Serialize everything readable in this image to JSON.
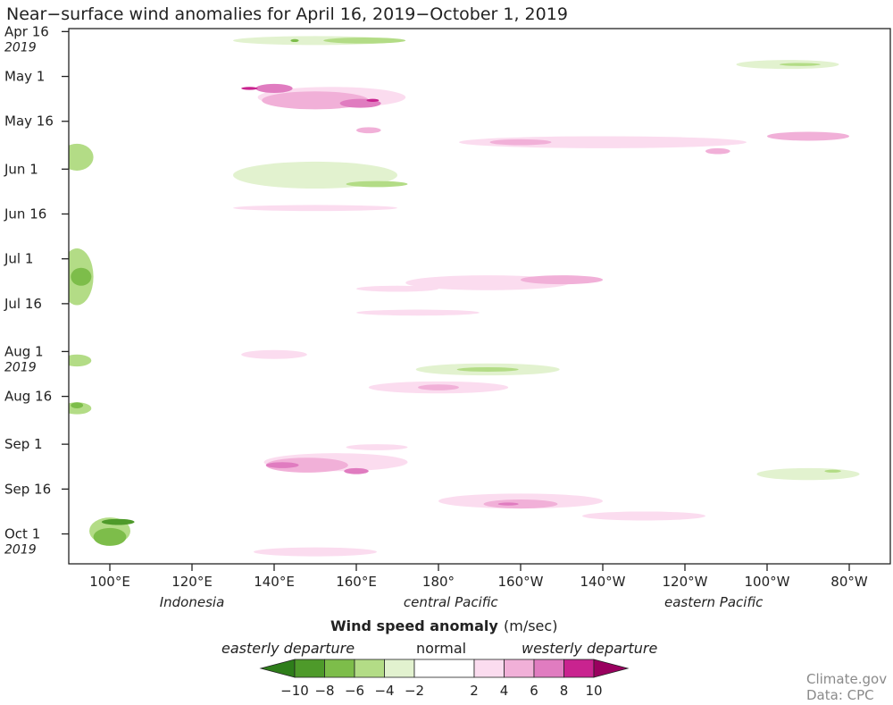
{
  "chart_data": {
    "type": "heatmap",
    "title": "Near−surface wind anomalies for April 16, 2019−October 1, 2019",
    "y_labels": [
      {
        "label": "Apr 16",
        "year": "2019",
        "day": 0
      },
      {
        "label": "May 1",
        "year": "",
        "day": 15
      },
      {
        "label": "May 16",
        "year": "",
        "day": 30
      },
      {
        "label": "Jun 1",
        "year": "",
        "day": 46
      },
      {
        "label": "Jun 16",
        "year": "",
        "day": 61
      },
      {
        "label": "Jul 1",
        "year": "",
        "day": 76
      },
      {
        "label": "Jul 16",
        "year": "",
        "day": 91
      },
      {
        "label": "Aug 1",
        "year": "2019",
        "day": 107
      },
      {
        "label": "Aug 16",
        "year": "",
        "day": 122
      },
      {
        "label": "Sep 1",
        "year": "",
        "day": 138
      },
      {
        "label": "Sep 16",
        "year": "",
        "day": 153
      },
      {
        "label": "Oct 1",
        "year": "2019",
        "day": 168
      }
    ],
    "y_range_days": [
      -1,
      178
    ],
    "x_labels": [
      {
        "label": "100°E",
        "lon": 100
      },
      {
        "label": "120°E",
        "lon": 120
      },
      {
        "label": "140°E",
        "lon": 140
      },
      {
        "label": "160°E",
        "lon": 160
      },
      {
        "label": "180°",
        "lon": 180
      },
      {
        "label": "160°W",
        "lon": 200
      },
      {
        "label": "140°W",
        "lon": 220
      },
      {
        "label": "120°W",
        "lon": 240
      },
      {
        "label": "100°W",
        "lon": 260
      },
      {
        "label": "80°W",
        "lon": 280
      }
    ],
    "x_range_lon": [
      90,
      290
    ],
    "regions": [
      {
        "label": "Indonesia",
        "lon": 120
      },
      {
        "label": "central Pacific",
        "lon": 183
      },
      {
        "label": "eastern Pacific",
        "lon": 247
      }
    ],
    "colorbar": {
      "title": "Wind speed anomaly",
      "unit": "(m/sec)",
      "left_label": "easterly departure",
      "center_label": "normal",
      "right_label": "westerly departure",
      "levels": [
        -10,
        -8,
        -6,
        -4,
        -2,
        2,
        4,
        6,
        8,
        10
      ],
      "tick_labels": [
        "−10",
        "−8",
        "−6",
        "−4",
        "−2",
        "2",
        "4",
        "6",
        "8",
        "10"
      ],
      "colors": [
        "#2e7d1a",
        "#4e9a2a",
        "#7dbd4a",
        "#b3dc86",
        "#e2f2cf",
        "#ffffff",
        "#fbdcef",
        "#f1b0d8",
        "#e07cc0",
        "#c9238f",
        "#99005f"
      ]
    },
    "anomalies": [
      {
        "lon": 150,
        "day": 3,
        "w": 40,
        "h": 3,
        "v": -3
      },
      {
        "lon": 162,
        "day": 3,
        "w": 20,
        "h": 2,
        "v": -5
      },
      {
        "lon": 145,
        "day": 3,
        "w": 2,
        "h": 1,
        "v": -7
      },
      {
        "lon": 265,
        "day": 11,
        "w": 25,
        "h": 3,
        "v": -3
      },
      {
        "lon": 268,
        "day": 11,
        "w": 10,
        "h": 1,
        "v": -5
      },
      {
        "lon": 154,
        "day": 22,
        "w": 36,
        "h": 7,
        "v": 3
      },
      {
        "lon": 150,
        "day": 23,
        "w": 26,
        "h": 6,
        "v": 5
      },
      {
        "lon": 140,
        "day": 19,
        "w": 9,
        "h": 3,
        "v": 7
      },
      {
        "lon": 161,
        "day": 24,
        "w": 10,
        "h": 3,
        "v": 7
      },
      {
        "lon": 134,
        "day": 19,
        "w": 4,
        "h": 1,
        "v": 9
      },
      {
        "lon": 164,
        "day": 23,
        "w": 3,
        "h": 1,
        "v": 9
      },
      {
        "lon": 163,
        "day": 33,
        "w": 6,
        "h": 2,
        "v": 5
      },
      {
        "lon": 220,
        "day": 37,
        "w": 70,
        "h": 4,
        "v": 2.5
      },
      {
        "lon": 200,
        "day": 37,
        "w": 15,
        "h": 2,
        "v": 4.5
      },
      {
        "lon": 270,
        "day": 35,
        "w": 20,
        "h": 3,
        "v": 4.5
      },
      {
        "lon": 248,
        "day": 40,
        "w": 6,
        "h": 2,
        "v": 5
      },
      {
        "lon": 92,
        "day": 42,
        "w": 8,
        "h": 9,
        "v": -4
      },
      {
        "lon": 150,
        "day": 48,
        "w": 40,
        "h": 9,
        "v": -3
      },
      {
        "lon": 165,
        "day": 51,
        "w": 15,
        "h": 2,
        "v": -5
      },
      {
        "lon": 150,
        "day": 59,
        "w": 40,
        "h": 2,
        "v": 2.5
      },
      {
        "lon": 92,
        "day": 82,
        "w": 8,
        "h": 19,
        "v": -4
      },
      {
        "lon": 93,
        "day": 82,
        "w": 5,
        "h": 6,
        "v": -6
      },
      {
        "lon": 192,
        "day": 84,
        "w": 40,
        "h": 5,
        "v": 3
      },
      {
        "lon": 210,
        "day": 83,
        "w": 20,
        "h": 3,
        "v": 4.5
      },
      {
        "lon": 170,
        "day": 86,
        "w": 20,
        "h": 2,
        "v": 3
      },
      {
        "lon": 175,
        "day": 94,
        "w": 30,
        "h": 2,
        "v": 3
      },
      {
        "lon": 92,
        "day": 110,
        "w": 7,
        "h": 4,
        "v": -4
      },
      {
        "lon": 192,
        "day": 113,
        "w": 35,
        "h": 4,
        "v": -3
      },
      {
        "lon": 192,
        "day": 113,
        "w": 15,
        "h": 1.5,
        "v": -5
      },
      {
        "lon": 140,
        "day": 108,
        "w": 16,
        "h": 3,
        "v": 2.5
      },
      {
        "lon": 180,
        "day": 119,
        "w": 34,
        "h": 4,
        "v": 3
      },
      {
        "lon": 180,
        "day": 119,
        "w": 10,
        "h": 2,
        "v": 4.5
      },
      {
        "lon": 92,
        "day": 126,
        "w": 7,
        "h": 4,
        "v": -4
      },
      {
        "lon": 92,
        "day": 125,
        "w": 3,
        "h": 2,
        "v": -6
      },
      {
        "lon": 155,
        "day": 144,
        "w": 35,
        "h": 6,
        "v": 3
      },
      {
        "lon": 148,
        "day": 145,
        "w": 20,
        "h": 5,
        "v": 5
      },
      {
        "lon": 142,
        "day": 145,
        "w": 8,
        "h": 2,
        "v": 7
      },
      {
        "lon": 160,
        "day": 147,
        "w": 6,
        "h": 2,
        "v": 7
      },
      {
        "lon": 165,
        "day": 139,
        "w": 15,
        "h": 2,
        "v": 3
      },
      {
        "lon": 200,
        "day": 157,
        "w": 40,
        "h": 5,
        "v": 3
      },
      {
        "lon": 200,
        "day": 158,
        "w": 18,
        "h": 3,
        "v": 5
      },
      {
        "lon": 197,
        "day": 158,
        "w": 5,
        "h": 1,
        "v": 7
      },
      {
        "lon": 270,
        "day": 148,
        "w": 25,
        "h": 4,
        "v": -3
      },
      {
        "lon": 276,
        "day": 147,
        "w": 4,
        "h": 1,
        "v": -5
      },
      {
        "lon": 100,
        "day": 167,
        "w": 10,
        "h": 9,
        "v": -4
      },
      {
        "lon": 100,
        "day": 169,
        "w": 8,
        "h": 6,
        "v": -6
      },
      {
        "lon": 102,
        "day": 164,
        "w": 8,
        "h": 2,
        "v": -8
      },
      {
        "lon": 230,
        "day": 162,
        "w": 30,
        "h": 3,
        "v": 2.5
      },
      {
        "lon": 150,
        "day": 174,
        "w": 30,
        "h": 3,
        "v": 2.5
      }
    ]
  },
  "credit": {
    "line1": "Climate.gov",
    "line2": "Data: CPC"
  }
}
